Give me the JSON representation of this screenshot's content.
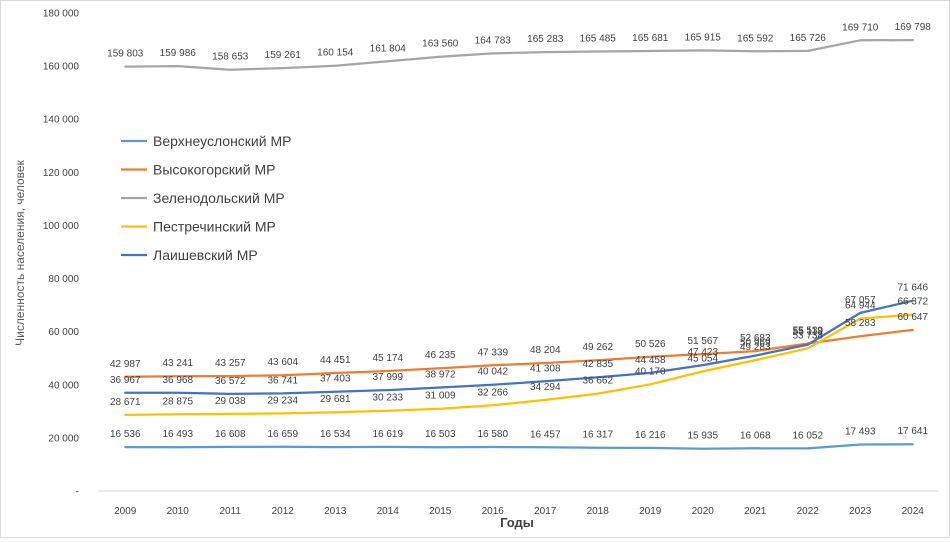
{
  "chart_data": {
    "type": "line",
    "xlabel": "Годы",
    "ylabel": "Численность населения, человек",
    "ylim": [
      0,
      180000
    ],
    "ytick_values": [
      0,
      20000,
      40000,
      60000,
      80000,
      100000,
      120000,
      140000,
      160000,
      180000
    ],
    "ytick_labels": [
      "-",
      "20 000",
      "40 000",
      "60 000",
      "80 000",
      "100 000",
      "120 000",
      "140 000",
      "160 000",
      "180 000"
    ],
    "grid": false,
    "legend_position": "left",
    "categories": [
      "2009",
      "2010",
      "2011",
      "2012",
      "2013",
      "2014",
      "2015",
      "2016",
      "2017",
      "2018",
      "2019",
      "2020",
      "2021",
      "2022",
      "2023",
      "2024"
    ],
    "series": [
      {
        "name": "Верхнеуслонский МР",
        "color": "#5b9bd5",
        "values": [
          16536,
          16493,
          16608,
          16659,
          16534,
          16619,
          16503,
          16580,
          16457,
          16317,
          16216,
          15935,
          16068,
          16052,
          17493,
          17641
        ],
        "labels": [
          "16 536",
          "16 493",
          "16 608",
          "16 659",
          "16 534",
          "16 619",
          "16 503",
          "16 580",
          "16 457",
          "16 317",
          "16 216",
          "15 935",
          "16 068",
          "16 052",
          "17 493",
          "17 641"
        ]
      },
      {
        "name": "Высокогорский МР",
        "color": "#ed7d31",
        "values": [
          42987,
          43241,
          43257,
          43604,
          44451,
          45174,
          46235,
          47339,
          48204,
          49262,
          50526,
          51567,
          52683,
          55539,
          58283,
          60647
        ],
        "labels": [
          "42 987",
          "43 241",
          "43 257",
          "43 604",
          "44 451",
          "45 174",
          "46 235",
          "47 339",
          "48 204",
          "49 262",
          "50 526",
          "51 567",
          "52 683",
          "55 539",
          "58 283",
          "60 647"
        ]
      },
      {
        "name": "Зеленодольский МР",
        "color": "#a5a5a5",
        "values": [
          159803,
          159986,
          158653,
          159261,
          160154,
          161804,
          163560,
          164783,
          165283,
          165485,
          165681,
          165915,
          165592,
          165726,
          169710,
          169798
        ],
        "labels": [
          "159 803",
          "159 986",
          "158 653",
          "159 261",
          "160 154",
          "161 804",
          "163 560",
          "164 783",
          "165 283",
          "165 485",
          "165 681",
          "165 915",
          "165 592",
          "165 726",
          "169 710",
          "169 798"
        ]
      },
      {
        "name": "Пестречинский МР",
        "color": "#ffc000",
        "values": [
          28671,
          28875,
          29038,
          29234,
          29681,
          30233,
          31009,
          32266,
          34294,
          36662,
          40170,
          45054,
          49283,
          53738,
          64944,
          66372
        ],
        "labels": [
          "28 671",
          "28 875",
          "29 038",
          "29 234",
          "29 681",
          "30 233",
          "31 009",
          "32 266",
          "34 294",
          "36 662",
          "40 170",
          "45 054",
          "49 283",
          "53 738",
          "64 944",
          "66 372"
        ]
      },
      {
        "name": "Лаишевский МР",
        "color": "#4472c4",
        "values": [
          36967,
          36968,
          36572,
          36741,
          37403,
          37999,
          38972,
          40042,
          41308,
          42835,
          44458,
          47423,
          50969,
          55118,
          67057,
          71646
        ],
        "labels": [
          "36 967",
          "36 968",
          "36 572",
          "36 741",
          "37 403",
          "37 999",
          "38 972",
          "40 042",
          "41 308",
          "42 835",
          "44 458",
          "47 423",
          "50 969",
          "55 118",
          "67 057",
          "71 646"
        ]
      }
    ]
  }
}
